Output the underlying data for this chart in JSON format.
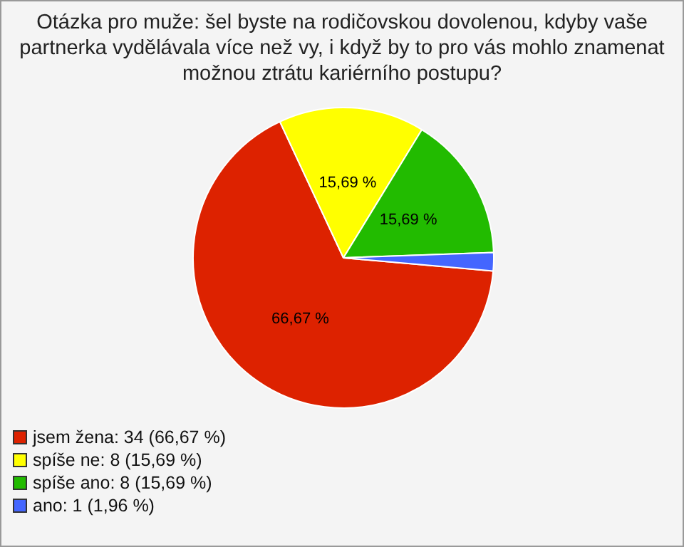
{
  "chart_data": {
    "type": "pie",
    "title": "Otázka pro muže: šel byste na rodičovskou dovolenou, kdyby vaše partnerka vydělávala více než vy, i když by to pro vás mohlo znamenat možnou ztrátu kariérního postupu?",
    "categories": [
      "jsem žena: 34 (66,67 %)",
      "spíše ne: 8 (15,69 %)",
      "spíše ano: 8 (15,69 %)",
      "ano: 1 (1,96 %)"
    ],
    "values": [
      66.67,
      15.69,
      15.69,
      1.96
    ],
    "colors": [
      "#dd2200",
      "#ffff00",
      "#22bb00",
      "#4466ff"
    ],
    "value_labels": [
      "66,67 %",
      "15,69 %",
      "15,69 %",
      null
    ],
    "legend": "bottom left"
  }
}
